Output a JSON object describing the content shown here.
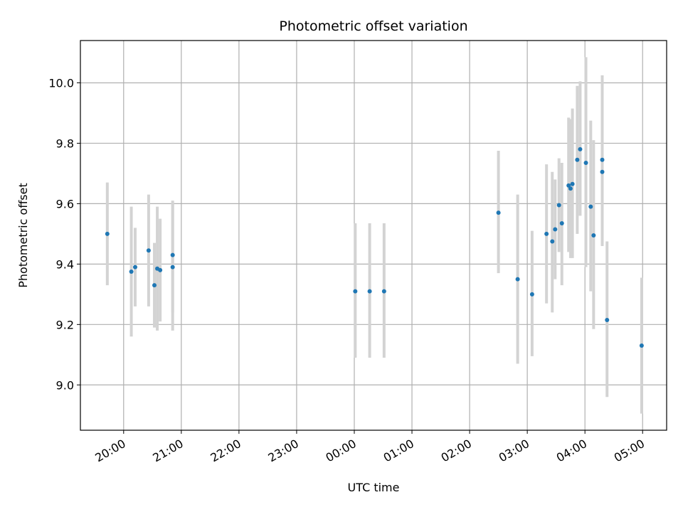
{
  "chart_data": {
    "type": "scatter",
    "title": "Photometric offset variation",
    "xlabel": "UTC time",
    "ylabel": "Photometric offset",
    "x_is_time": true,
    "x_tick_labels": [
      "20:00",
      "21:00",
      "22:00",
      "23:00",
      "00:00",
      "01:00",
      "02:00",
      "03:00",
      "04:00",
      "05:00"
    ],
    "x_tick_hours": [
      20,
      21,
      22,
      23,
      24,
      25,
      26,
      27,
      28,
      29
    ],
    "xlim": [
      "19:15",
      "29:25"
    ],
    "ylim": [
      8.85,
      10.14
    ],
    "y_ticks": [
      9.0,
      9.2,
      9.4,
      9.6,
      9.8,
      10.0
    ],
    "y_tick_labels": [
      "9.0",
      "9.2",
      "9.4",
      "9.6",
      "9.8",
      "10.0"
    ],
    "grid": true,
    "marker_color": "#1f77b4",
    "errorbar_color": "#d3d3d3",
    "points": [
      {
        "t": "19:43",
        "y": 9.5,
        "low": 9.33,
        "high": 9.67
      },
      {
        "t": "20:08",
        "y": 9.375,
        "low": 9.16,
        "high": 9.59
      },
      {
        "t": "20:12",
        "y": 9.39,
        "low": 9.26,
        "high": 9.52
      },
      {
        "t": "20:26",
        "y": 9.445,
        "low": 9.26,
        "high": 9.63
      },
      {
        "t": "20:32",
        "y": 9.33,
        "low": 9.19,
        "high": 9.47
      },
      {
        "t": "20:35",
        "y": 9.385,
        "low": 9.18,
        "high": 9.59
      },
      {
        "t": "20:38",
        "y": 9.38,
        "low": 9.21,
        "high": 9.55
      },
      {
        "t": "20:51",
        "y": 9.43,
        "low": 9.24,
        "high": 9.61
      },
      {
        "t": "20:51",
        "y": 9.39,
        "low": 9.18,
        "high": 9.6
      },
      {
        "t": "24:01",
        "y": 9.31,
        "low": 9.09,
        "high": 9.535
      },
      {
        "t": "24:16",
        "y": 9.31,
        "low": 9.09,
        "high": 9.535
      },
      {
        "t": "24:31",
        "y": 9.31,
        "low": 9.09,
        "high": 9.535
      },
      {
        "t": "26:30",
        "y": 9.57,
        "low": 9.37,
        "high": 9.775
      },
      {
        "t": "26:50",
        "y": 9.35,
        "low": 9.07,
        "high": 9.63
      },
      {
        "t": "27:05",
        "y": 9.3,
        "low": 9.095,
        "high": 9.51
      },
      {
        "t": "27:20",
        "y": 9.5,
        "low": 9.27,
        "high": 9.73
      },
      {
        "t": "27:26",
        "y": 9.475,
        "low": 9.24,
        "high": 9.705
      },
      {
        "t": "27:29",
        "y": 9.515,
        "low": 9.35,
        "high": 9.68
      },
      {
        "t": "27:33",
        "y": 9.595,
        "low": 9.44,
        "high": 9.75
      },
      {
        "t": "27:36",
        "y": 9.535,
        "low": 9.33,
        "high": 9.735
      },
      {
        "t": "27:43",
        "y": 9.66,
        "low": 9.44,
        "high": 9.885
      },
      {
        "t": "27:45",
        "y": 9.65,
        "low": 9.42,
        "high": 9.88
      },
      {
        "t": "27:47",
        "y": 9.665,
        "low": 9.42,
        "high": 9.915
      },
      {
        "t": "27:52",
        "y": 9.745,
        "low": 9.5,
        "high": 9.99
      },
      {
        "t": "27:55",
        "y": 9.78,
        "low": 9.56,
        "high": 10.005
      },
      {
        "t": "28:01",
        "y": 9.735,
        "low": 9.39,
        "high": 10.085
      },
      {
        "t": "28:06",
        "y": 9.59,
        "low": 9.31,
        "high": 9.875
      },
      {
        "t": "28:09",
        "y": 9.495,
        "low": 9.185,
        "high": 9.81
      },
      {
        "t": "28:18",
        "y": 9.745,
        "low": 9.46,
        "high": 10.025
      },
      {
        "t": "28:18",
        "y": 9.705,
        "low": 9.46,
        "high": 9.955
      },
      {
        "t": "28:23",
        "y": 9.215,
        "low": 8.96,
        "high": 9.475
      },
      {
        "t": "28:59",
        "y": 9.13,
        "low": 8.905,
        "high": 9.355
      }
    ]
  }
}
